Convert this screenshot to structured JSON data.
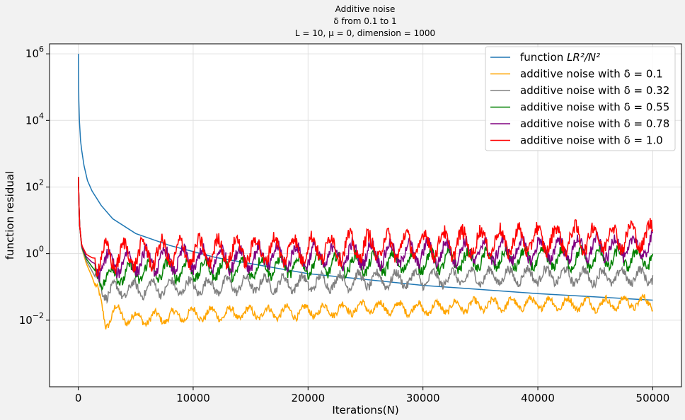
{
  "chart_data": {
    "type": "line",
    "title_lines": [
      "Additive noise",
      "δ from 0.1 to 1",
      "L = 10, μ = 0, dimension = 1000"
    ],
    "xlabel": "Iterations(N)",
    "ylabel": "function residual",
    "xlim": [
      -2500,
      52500
    ],
    "ylim_log10": [
      -4.0,
      6.3
    ],
    "yscale": "log",
    "grid": true,
    "legend_position": "upper-right",
    "x_ticks": [
      {
        "value": 0,
        "label": "0"
      },
      {
        "value": 10000,
        "label": "10000"
      },
      {
        "value": 20000,
        "label": "20000"
      },
      {
        "value": 30000,
        "label": "30000"
      },
      {
        "value": 40000,
        "label": "40000"
      },
      {
        "value": 50000,
        "label": "50000"
      }
    ],
    "y_ticks": [
      {
        "exp": -2,
        "base": "10",
        "sup": "−2"
      },
      {
        "exp": 0,
        "base": "10",
        "sup": "0"
      },
      {
        "exp": 2,
        "base": "10",
        "sup": "2"
      },
      {
        "exp": 4,
        "base": "10",
        "sup": "4"
      },
      {
        "exp": 6,
        "base": "10",
        "sup": "6"
      }
    ],
    "series": [
      {
        "name": "function LR²/N²",
        "legend_prefix": "function ",
        "legend_math": "LR²/N²",
        "color": "#1f77b4",
        "x": [
          10,
          50,
          100,
          200,
          400,
          800,
          1500,
          3000,
          5000,
          10000,
          20000,
          30000,
          40000,
          50000
        ],
        "y": [
          1000000,
          40000,
          10000,
          2500,
          625,
          156,
          44,
          11.1,
          4.0,
          1.0,
          0.25,
          0.111,
          0.0625,
          0.04
        ],
        "display_scale": 0.01
      },
      {
        "name": "additive noise with δ = 0.1",
        "legend_label": "additive noise with δ =  0.1",
        "color": "#ffa500",
        "x": [
          10,
          100,
          300,
          700,
          1200,
          1800,
          2400,
          3200,
          4000,
          6000,
          8000,
          10000,
          15000,
          20000,
          25000,
          30000,
          35000,
          40000,
          45000,
          50000
        ],
        "y": [
          200,
          8,
          1.5,
          0.5,
          0.2,
          0.05,
          0.008,
          0.02,
          0.012,
          0.011,
          0.013,
          0.015,
          0.016,
          0.018,
          0.024,
          0.022,
          0.028,
          0.032,
          0.03,
          0.035
        ]
      },
      {
        "name": "additive noise with δ = 0.32",
        "legend_label": "additive noise with δ =  0.32",
        "color": "#808080",
        "x": [
          10,
          100,
          300,
          700,
          1200,
          1800,
          2500,
          4000,
          6000,
          10000,
          15000,
          20000,
          25000,
          30000,
          35000,
          40000,
          45000,
          50000
        ],
        "y": [
          200,
          8,
          1.5,
          0.6,
          0.3,
          0.12,
          0.07,
          0.08,
          0.09,
          0.1,
          0.12,
          0.13,
          0.16,
          0.17,
          0.2,
          0.22,
          0.2,
          0.21
        ]
      },
      {
        "name": "additive noise with δ = 0.55",
        "legend_label": "additive noise with δ =  0.55",
        "color": "#008000",
        "x": [
          10,
          100,
          300,
          700,
          1200,
          1800,
          2500,
          4000,
          6000,
          10000,
          15000,
          20000,
          25000,
          30000,
          35000,
          40000,
          45000,
          50000
        ],
        "y": [
          200,
          8,
          1.6,
          0.7,
          0.4,
          0.22,
          0.2,
          0.25,
          0.3,
          0.33,
          0.38,
          0.45,
          0.5,
          0.58,
          0.65,
          0.7,
          0.7,
          0.72
        ]
      },
      {
        "name": "additive noise with δ = 0.78",
        "legend_label": "additive noise with δ =  0.78",
        "color": "#800080",
        "x": [
          10,
          100,
          300,
          700,
          1200,
          1800,
          2500,
          4000,
          6000,
          10000,
          15000,
          20000,
          25000,
          30000,
          35000,
          40000,
          45000,
          50000
        ],
        "y": [
          200,
          8,
          1.7,
          0.8,
          0.55,
          0.45,
          0.5,
          0.55,
          0.6,
          0.65,
          0.75,
          0.85,
          0.95,
          1.05,
          1.15,
          1.3,
          1.45,
          1.6
        ]
      },
      {
        "name": "additive noise with δ = 1.0",
        "legend_label": "additive noise with δ =  1.0",
        "color": "#ff0000",
        "x": [
          10,
          100,
          300,
          700,
          1200,
          1800,
          2500,
          4000,
          6000,
          10000,
          15000,
          20000,
          25000,
          30000,
          35000,
          40000,
          45000,
          50000
        ],
        "y": [
          200,
          8,
          1.8,
          0.95,
          0.75,
          0.7,
          0.8,
          0.9,
          1.0,
          1.1,
          1.25,
          1.4,
          1.6,
          1.9,
          2.2,
          2.6,
          3.0,
          3.4
        ]
      }
    ]
  }
}
